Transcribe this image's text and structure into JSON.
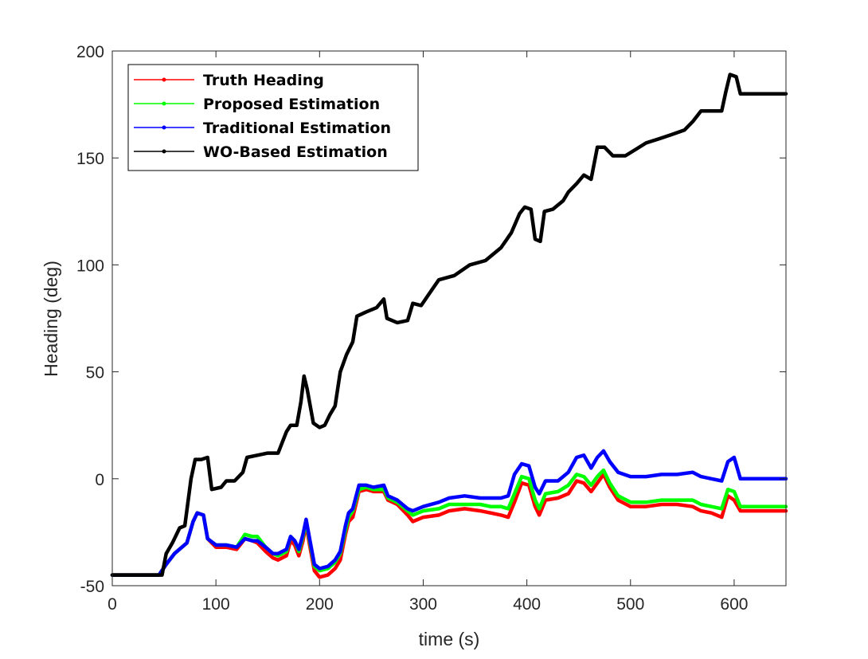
{
  "chart_data": {
    "type": "line",
    "title": "",
    "xlabel": "time (s)",
    "ylabel": "Heading (deg)",
    "xlim": [
      0,
      650
    ],
    "ylim": [
      -50,
      200
    ],
    "xticks": [
      0,
      100,
      200,
      300,
      400,
      500,
      600
    ],
    "yticks": [
      -50,
      0,
      50,
      100,
      150,
      200
    ],
    "grid": false,
    "legend_position": "top-left",
    "series": [
      {
        "name": "Truth Heading",
        "color": "#ff0000",
        "points": [
          [
            0,
            -45
          ],
          [
            45,
            -45
          ],
          [
            52,
            -40
          ],
          [
            60,
            -35
          ],
          [
            72,
            -30
          ],
          [
            78,
            -20
          ],
          [
            82,
            -16
          ],
          [
            88,
            -17
          ],
          [
            92,
            -28
          ],
          [
            100,
            -32
          ],
          [
            110,
            -32
          ],
          [
            120,
            -33
          ],
          [
            128,
            -28
          ],
          [
            135,
            -29
          ],
          [
            140,
            -30
          ],
          [
            148,
            -34
          ],
          [
            155,
            -37
          ],
          [
            160,
            -38
          ],
          [
            168,
            -36
          ],
          [
            172,
            -29
          ],
          [
            176,
            -31
          ],
          [
            180,
            -36
          ],
          [
            184,
            -29
          ],
          [
            187,
            -21
          ],
          [
            190,
            -30
          ],
          [
            195,
            -43
          ],
          [
            200,
            -46
          ],
          [
            208,
            -45
          ],
          [
            215,
            -42
          ],
          [
            220,
            -38
          ],
          [
            225,
            -26
          ],
          [
            228,
            -20
          ],
          [
            232,
            -18
          ],
          [
            238,
            -6
          ],
          [
            245,
            -5
          ],
          [
            252,
            -6
          ],
          [
            262,
            -6
          ],
          [
            266,
            -10
          ],
          [
            275,
            -12
          ],
          [
            285,
            -17
          ],
          [
            290,
            -20
          ],
          [
            300,
            -18
          ],
          [
            315,
            -17
          ],
          [
            325,
            -15
          ],
          [
            340,
            -14
          ],
          [
            355,
            -15
          ],
          [
            365,
            -16
          ],
          [
            375,
            -17
          ],
          [
            382,
            -18
          ],
          [
            388,
            -11
          ],
          [
            395,
            -2
          ],
          [
            402,
            -3
          ],
          [
            408,
            -13
          ],
          [
            412,
            -17
          ],
          [
            418,
            -10
          ],
          [
            430,
            -9
          ],
          [
            440,
            -7
          ],
          [
            448,
            -1
          ],
          [
            455,
            -2
          ],
          [
            462,
            -6
          ],
          [
            468,
            -2
          ],
          [
            474,
            2
          ],
          [
            480,
            -4
          ],
          [
            488,
            -10
          ],
          [
            500,
            -13
          ],
          [
            515,
            -13
          ],
          [
            530,
            -12
          ],
          [
            545,
            -12
          ],
          [
            560,
            -13
          ],
          [
            568,
            -15
          ],
          [
            578,
            -16
          ],
          [
            588,
            -18
          ],
          [
            594,
            -8
          ],
          [
            600,
            -10
          ],
          [
            606,
            -15
          ],
          [
            650,
            -15
          ]
        ]
      },
      {
        "name": "Proposed Estimation",
        "color": "#00ff00",
        "points": [
          [
            0,
            -45
          ],
          [
            45,
            -45
          ],
          [
            52,
            -40
          ],
          [
            60,
            -35
          ],
          [
            72,
            -30
          ],
          [
            78,
            -20
          ],
          [
            82,
            -16
          ],
          [
            88,
            -17
          ],
          [
            92,
            -28
          ],
          [
            100,
            -31
          ],
          [
            110,
            -31
          ],
          [
            120,
            -32
          ],
          [
            128,
            -26
          ],
          [
            135,
            -27
          ],
          [
            140,
            -27
          ],
          [
            148,
            -32
          ],
          [
            155,
            -35
          ],
          [
            160,
            -36
          ],
          [
            168,
            -34
          ],
          [
            172,
            -27
          ],
          [
            176,
            -29
          ],
          [
            180,
            -34
          ],
          [
            184,
            -27
          ],
          [
            187,
            -20
          ],
          [
            190,
            -28
          ],
          [
            195,
            -41
          ],
          [
            200,
            -43
          ],
          [
            208,
            -42
          ],
          [
            215,
            -39
          ],
          [
            220,
            -35
          ],
          [
            225,
            -24
          ],
          [
            228,
            -18
          ],
          [
            232,
            -15
          ],
          [
            238,
            -5
          ],
          [
            245,
            -4
          ],
          [
            252,
            -5
          ],
          [
            262,
            -5
          ],
          [
            266,
            -9
          ],
          [
            275,
            -11
          ],
          [
            285,
            -15
          ],
          [
            290,
            -17
          ],
          [
            300,
            -15
          ],
          [
            315,
            -14
          ],
          [
            325,
            -12
          ],
          [
            340,
            -12
          ],
          [
            355,
            -12
          ],
          [
            365,
            -13
          ],
          [
            375,
            -13
          ],
          [
            382,
            -14
          ],
          [
            388,
            -7
          ],
          [
            395,
            1
          ],
          [
            402,
            0
          ],
          [
            408,
            -10
          ],
          [
            412,
            -14
          ],
          [
            418,
            -7
          ],
          [
            430,
            -6
          ],
          [
            440,
            -3
          ],
          [
            448,
            2
          ],
          [
            455,
            1
          ],
          [
            462,
            -3
          ],
          [
            468,
            1
          ],
          [
            474,
            4
          ],
          [
            480,
            -2
          ],
          [
            488,
            -8
          ],
          [
            500,
            -11
          ],
          [
            515,
            -11
          ],
          [
            530,
            -10
          ],
          [
            545,
            -10
          ],
          [
            560,
            -10
          ],
          [
            568,
            -12
          ],
          [
            578,
            -13
          ],
          [
            588,
            -14
          ],
          [
            594,
            -5
          ],
          [
            600,
            -6
          ],
          [
            606,
            -13
          ],
          [
            650,
            -13
          ]
        ]
      },
      {
        "name": "Traditional Estimation",
        "color": "#0000ff",
        "points": [
          [
            0,
            -45
          ],
          [
            45,
            -45
          ],
          [
            52,
            -40
          ],
          [
            60,
            -35
          ],
          [
            72,
            -30
          ],
          [
            78,
            -20
          ],
          [
            82,
            -16
          ],
          [
            88,
            -17
          ],
          [
            92,
            -28
          ],
          [
            100,
            -31
          ],
          [
            110,
            -31
          ],
          [
            120,
            -32
          ],
          [
            128,
            -28
          ],
          [
            135,
            -29
          ],
          [
            140,
            -29
          ],
          [
            148,
            -32
          ],
          [
            155,
            -35
          ],
          [
            160,
            -35
          ],
          [
            168,
            -33
          ],
          [
            172,
            -27
          ],
          [
            176,
            -29
          ],
          [
            180,
            -33
          ],
          [
            184,
            -26
          ],
          [
            187,
            -19
          ],
          [
            190,
            -27
          ],
          [
            195,
            -40
          ],
          [
            200,
            -42
          ],
          [
            208,
            -41
          ],
          [
            215,
            -38
          ],
          [
            220,
            -34
          ],
          [
            225,
            -22
          ],
          [
            228,
            -16
          ],
          [
            232,
            -14
          ],
          [
            238,
            -3
          ],
          [
            245,
            -3
          ],
          [
            252,
            -4
          ],
          [
            262,
            -3
          ],
          [
            266,
            -8
          ],
          [
            275,
            -10
          ],
          [
            285,
            -14
          ],
          [
            290,
            -15
          ],
          [
            300,
            -13
          ],
          [
            315,
            -11
          ],
          [
            325,
            -9
          ],
          [
            340,
            -8
          ],
          [
            355,
            -9
          ],
          [
            365,
            -9
          ],
          [
            375,
            -9
          ],
          [
            382,
            -8
          ],
          [
            388,
            2
          ],
          [
            395,
            7
          ],
          [
            402,
            6
          ],
          [
            408,
            -4
          ],
          [
            412,
            -7
          ],
          [
            418,
            -1
          ],
          [
            430,
            -1
          ],
          [
            440,
            3
          ],
          [
            448,
            10
          ],
          [
            455,
            11
          ],
          [
            462,
            5
          ],
          [
            468,
            10
          ],
          [
            474,
            13
          ],
          [
            480,
            8
          ],
          [
            488,
            3
          ],
          [
            500,
            1
          ],
          [
            515,
            1
          ],
          [
            530,
            2
          ],
          [
            545,
            2
          ],
          [
            560,
            3
          ],
          [
            568,
            1
          ],
          [
            578,
            0
          ],
          [
            588,
            -1
          ],
          [
            594,
            8
          ],
          [
            600,
            10
          ],
          [
            606,
            0
          ],
          [
            650,
            0
          ]
        ]
      },
      {
        "name": "WO-Based Estimation",
        "color": "#000000",
        "points": [
          [
            0,
            -45
          ],
          [
            48,
            -45
          ],
          [
            52,
            -35
          ],
          [
            58,
            -30
          ],
          [
            65,
            -23
          ],
          [
            70,
            -22
          ],
          [
            76,
            0
          ],
          [
            80,
            9
          ],
          [
            86,
            9
          ],
          [
            92,
            10
          ],
          [
            96,
            -5
          ],
          [
            105,
            -4
          ],
          [
            110,
            -1
          ],
          [
            118,
            -1
          ],
          [
            126,
            3
          ],
          [
            130,
            10
          ],
          [
            140,
            11
          ],
          [
            150,
            12
          ],
          [
            160,
            12
          ],
          [
            168,
            22
          ],
          [
            172,
            25
          ],
          [
            178,
            25
          ],
          [
            182,
            36
          ],
          [
            185,
            48
          ],
          [
            188,
            42
          ],
          [
            194,
            26
          ],
          [
            200,
            24
          ],
          [
            205,
            25
          ],
          [
            210,
            30
          ],
          [
            215,
            34
          ],
          [
            220,
            50
          ],
          [
            226,
            58
          ],
          [
            232,
            64
          ],
          [
            236,
            76
          ],
          [
            245,
            78
          ],
          [
            255,
            80
          ],
          [
            262,
            84
          ],
          [
            265,
            75
          ],
          [
            275,
            73
          ],
          [
            285,
            74
          ],
          [
            290,
            82
          ],
          [
            298,
            81
          ],
          [
            305,
            86
          ],
          [
            315,
            93
          ],
          [
            330,
            95
          ],
          [
            345,
            100
          ],
          [
            360,
            102
          ],
          [
            375,
            108
          ],
          [
            385,
            115
          ],
          [
            393,
            124
          ],
          [
            398,
            127
          ],
          [
            404,
            126
          ],
          [
            408,
            112
          ],
          [
            413,
            111
          ],
          [
            417,
            125
          ],
          [
            425,
            126
          ],
          [
            435,
            130
          ],
          [
            440,
            134
          ],
          [
            448,
            138
          ],
          [
            455,
            142
          ],
          [
            462,
            140
          ],
          [
            468,
            155
          ],
          [
            475,
            155
          ],
          [
            483,
            151
          ],
          [
            495,
            151
          ],
          [
            505,
            154
          ],
          [
            515,
            157
          ],
          [
            528,
            159
          ],
          [
            540,
            161
          ],
          [
            552,
            163
          ],
          [
            560,
            167
          ],
          [
            568,
            172
          ],
          [
            578,
            172
          ],
          [
            588,
            172
          ],
          [
            592,
            181
          ],
          [
            596,
            189
          ],
          [
            602,
            188
          ],
          [
            606,
            180
          ],
          [
            650,
            180
          ]
        ]
      }
    ]
  }
}
